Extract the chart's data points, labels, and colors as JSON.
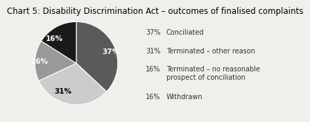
{
  "title": "Chart 5: Disability Discrimination Act – outcomes of finalised complaints",
  "slices": [
    37,
    31,
    16,
    16
  ],
  "slice_labels": [
    "37%",
    "31%",
    "16%",
    "16%"
  ],
  "colors": [
    "#5a5a5a",
    "#cccccc",
    "#999999",
    "#1a1a1a"
  ],
  "startangle": 90,
  "counterclock": false,
  "title_fontsize": 8.5,
  "label_fontsize": 7.5,
  "legend_entries": [
    {
      "pct": "37%",
      "text": "Conciliated"
    },
    {
      "pct": "31%",
      "text": "Terminated – other reason"
    },
    {
      "pct": "16%",
      "text": "Terminated – no reasonable\nprospect of conciliation"
    },
    {
      "pct": "16%",
      "text": "Withdrawn"
    }
  ],
  "bg_color": "#f0efeb"
}
